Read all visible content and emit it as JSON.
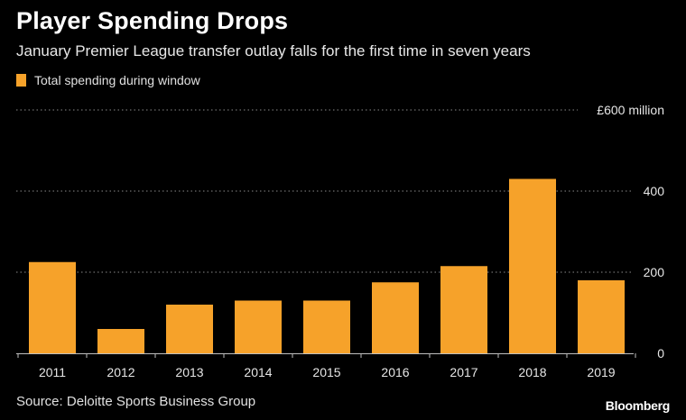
{
  "chart_data": {
    "type": "bar",
    "title": "Player Spending Drops",
    "subtitle": "January Premier League transfer outlay falls for the first time in seven years",
    "legend": [
      "Total spending during window"
    ],
    "categories": [
      "2011",
      "2012",
      "2013",
      "2014",
      "2015",
      "2016",
      "2017",
      "2018",
      "2019"
    ],
    "series": [
      {
        "name": "Total spending during window",
        "values": [
          225,
          60,
          120,
          130,
          130,
          175,
          215,
          430,
          180
        ]
      }
    ],
    "ylim": [
      0,
      600
    ],
    "yticks": [
      {
        "value": 0,
        "label": "0"
      },
      {
        "value": 200,
        "label": "200"
      },
      {
        "value": 400,
        "label": "400"
      },
      {
        "value": 600,
        "label": "£600 million"
      }
    ],
    "xlabel": "",
    "ylabel": "",
    "grid": true,
    "source": "Source: Deloitte Sports Business Group",
    "brand": "Bloomberg",
    "colors": {
      "bar": "#f6a22a",
      "background": "#000000"
    }
  }
}
